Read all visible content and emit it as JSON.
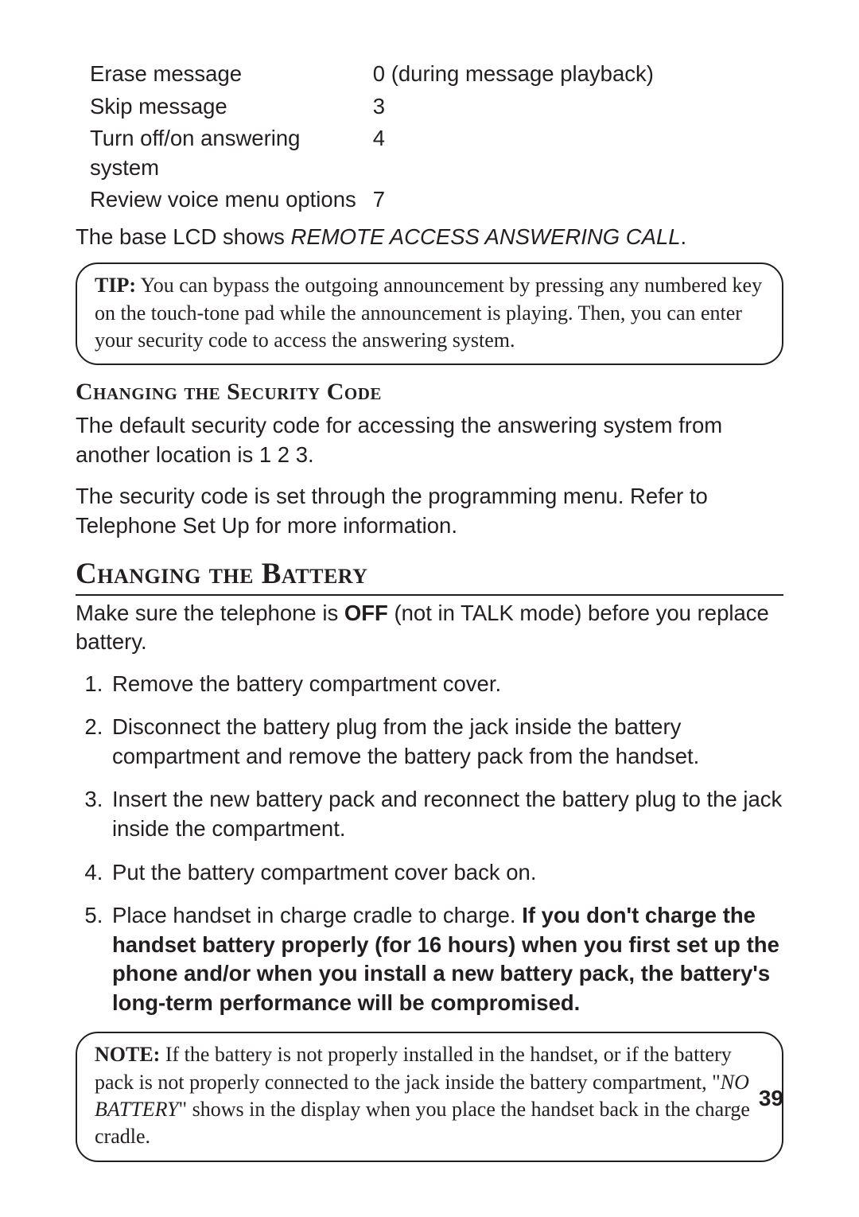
{
  "commands": [
    {
      "label": "Erase message",
      "key": "0 (during message playback)"
    },
    {
      "label": "Skip message",
      "key": "3"
    },
    {
      "label": "Turn off/on answering system",
      "key": "4"
    },
    {
      "label": "Review voice menu options",
      "key": "7"
    }
  ],
  "lcd_prefix": "The base LCD shows ",
  "lcd_status": "REMOTE ACCESS ANSWERING CALL",
  "lcd_suffix": ".",
  "tip": {
    "label": "TIP:",
    "text": " You can bypass the outgoing announcement by pressing any numbered key on the touch-tone pad while the announcement is playing. Then, you can enter your security code to access the answering system."
  },
  "sec_code": {
    "heading": "Changing the Security Code",
    "p1": "The default security code for accessing the answering system from another location is 1 2 3.",
    "p2": "The security code is set through the programming menu. Refer to Telephone Set Up for more information."
  },
  "battery": {
    "heading": "Changing the Battery",
    "intro_a": "Make sure the telephone is ",
    "intro_bold": "OFF",
    "intro_b": " (not in TALK mode) before you replace battery.",
    "steps": {
      "s1": "Remove the battery compartment cover.",
      "s2": "Disconnect the battery plug from the jack inside the battery compartment and remove the battery pack from the handset.",
      "s3": "Insert the new battery pack and reconnect the battery plug to the jack inside the compartment.",
      "s4": "Put the battery compartment cover back on.",
      "s5a": "Place handset in charge cradle to charge. ",
      "s5b": "If you don't charge the handset battery properly (for 16 hours) when you first set up the phone and/or when you install a new battery pack, the battery's long-term performance will be compromised."
    }
  },
  "note": {
    "label": "NOTE:",
    "a": " If the battery is not properly installed in the handset, or if the battery pack is not properly connected to the jack inside the battery compartment, \"",
    "b": "NO BATTERY",
    "c": "\" shows in the display when you place the handset back in the charge cradle."
  },
  "page_number": "39"
}
